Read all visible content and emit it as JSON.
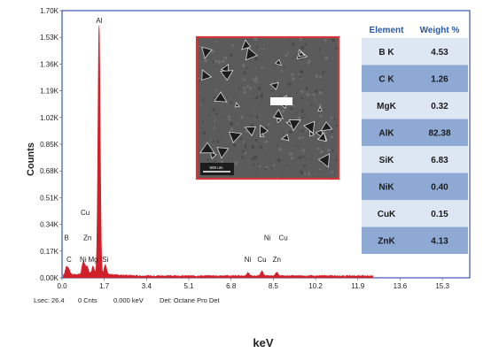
{
  "chart_data": {
    "type": "line",
    "xlabel": "keV",
    "ylabel": "Counts",
    "xlim": [
      0,
      16.4
    ],
    "ylim": [
      0,
      1.7
    ],
    "x_ticks": [
      "0.0",
      "1.7",
      "3.4",
      "5.1",
      "6.8",
      "8.5",
      "10.2",
      "11.9",
      "13.6",
      "15.3"
    ],
    "y_ticks": [
      "0.00K",
      "0.17K",
      "0.34K",
      "0.51K",
      "0.68K",
      "0.85K",
      "1.02K",
      "1.19K",
      "1.36K",
      "1.53K",
      "1.70K"
    ],
    "grid": false,
    "peaks": [
      {
        "energy": 0.18,
        "counts": 0.05
      },
      {
        "energy": 0.28,
        "counts": 0.03
      },
      {
        "energy": 0.85,
        "counts": 0.07
      },
      {
        "energy": 0.93,
        "counts": 0.03
      },
      {
        "energy": 1.02,
        "counts": 0.04
      },
      {
        "energy": 1.25,
        "counts": 0.05
      },
      {
        "energy": 1.49,
        "counts": 1.58
      },
      {
        "energy": 1.74,
        "counts": 0.06
      },
      {
        "energy": 7.47,
        "counts": 0.02
      },
      {
        "energy": 8.04,
        "counts": 0.03
      },
      {
        "energy": 8.64,
        "counts": 0.02
      }
    ],
    "peak_labels": [
      {
        "text": "Al",
        "energy": 1.49,
        "counts": 1.62
      },
      {
        "text": "Cu",
        "energy": 0.93,
        "counts": 0.4
      },
      {
        "text": "B",
        "energy": 0.18,
        "counts": 0.24
      },
      {
        "text": "Zn",
        "energy": 1.02,
        "counts": 0.24
      },
      {
        "text": "C",
        "energy": 0.28,
        "counts": 0.1
      },
      {
        "text": "Ni",
        "energy": 0.85,
        "counts": 0.1
      },
      {
        "text": "Mg",
        "energy": 1.25,
        "counts": 0.1
      },
      {
        "text": "Si",
        "energy": 1.74,
        "counts": 0.1
      },
      {
        "text": "Ni",
        "energy": 7.47,
        "counts": 0.1
      },
      {
        "text": "Cu",
        "energy": 8.04,
        "counts": 0.1
      },
      {
        "text": "Zn",
        "energy": 8.64,
        "counts": 0.1
      },
      {
        "text": "Ni",
        "energy": 8.26,
        "counts": 0.24
      },
      {
        "text": "Cu",
        "energy": 8.9,
        "counts": 0.24
      }
    ],
    "series_color": "#d0202a"
  },
  "status_bar": {
    "lsec": "Lsec: 26.4",
    "cnts": "0 Cnts",
    "kev": "0.000 keV",
    "det": "Det: Octane Pro Det"
  },
  "composition_table": {
    "headers": [
      "Element",
      "Weight %"
    ],
    "rows": [
      {
        "element": "B K",
        "weight": "4.53"
      },
      {
        "element": "C K",
        "weight": "1.26"
      },
      {
        "element": "MgK",
        "weight": "0.32"
      },
      {
        "element": "AlK",
        "weight": "82.38"
      },
      {
        "element": "SiK",
        "weight": "6.83"
      },
      {
        "element": "NiK",
        "weight": "0.40"
      },
      {
        "element": "CuK",
        "weight": "0.15"
      },
      {
        "element": "ZnK",
        "weight": "4.13"
      }
    ],
    "row_colors": [
      "#dde6f3",
      "#8eaad4"
    ],
    "header_color": "#2b5aa8"
  },
  "sem_inset": {
    "scale_bar_label": "500 um",
    "border_color": "#d8373a"
  }
}
